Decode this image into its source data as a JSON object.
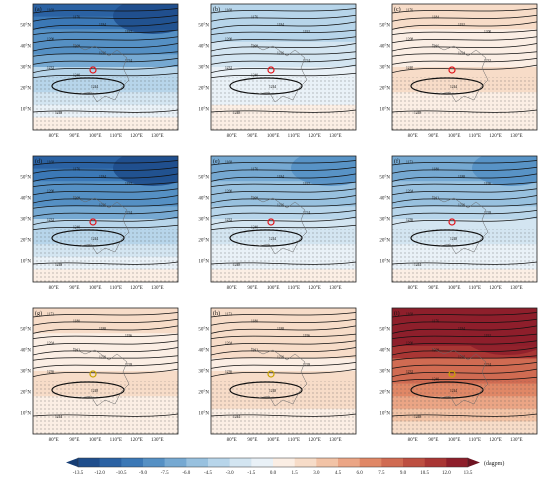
{
  "figure": {
    "panel_labels": [
      "(a)",
      "(b)",
      "(c)",
      "(d)",
      "(e)",
      "(f)",
      "(g)",
      "(h)",
      "(i)"
    ],
    "lon_ticks": [
      "80°E",
      "90°E",
      "100°E",
      "110°E",
      "120°E",
      "130°E"
    ],
    "lat_ticks": [
      "50°N",
      "40°N",
      "30°N",
      "20°N",
      "10°N"
    ],
    "colorbar": {
      "ticks": [
        "-13.5",
        "-12.0",
        "-10.5",
        "-9.0",
        "-7.5",
        "-6.0",
        "-4.5",
        "-3.0",
        "-1.5",
        "0.0",
        "1.5",
        "3.0",
        "4.5",
        "6.0",
        "7.5",
        "9.0",
        "10.5",
        "12.0",
        "13.5"
      ],
      "unit": "(dagpm)",
      "colors": [
        "#1f4e8c",
        "#2b62a3",
        "#3b78b6",
        "#5590c4",
        "#76a9d2",
        "#98c1df",
        "#b7d5ea",
        "#d3e5f1",
        "#e9f1f7",
        "#fbeee4",
        "#f7dcc8",
        "#f2c3a6",
        "#eba585",
        "#e08766",
        "#d06b52",
        "#bd4f41",
        "#a93634",
        "#8e1f2b"
      ]
    }
  },
  "chart_data": {
    "type": "contour-map",
    "panels": [
      {
        "label": "(a)",
        "field_mean_anom": -6.5,
        "contours": [
          "1168",
          "1176",
          "1184",
          "1192",
          "1200",
          "1208",
          "1216",
          "1224",
          "1232",
          "1240",
          "1248",
          "1244"
        ]
      },
      {
        "label": "(b)",
        "field_mean_anom": -2.5,
        "contours": [
          "1168",
          "1176",
          "1184",
          "1192",
          "1200",
          "1208",
          "1216",
          "1224",
          "1232",
          "1240",
          "1248",
          "1244"
        ]
      },
      {
        "label": "(c)",
        "field_mean_anom": 1.0,
        "contours": [
          "1176",
          "1184",
          "1192",
          "1200",
          "1208",
          "1216",
          "1224",
          "1232",
          "1240",
          "1248",
          "1244"
        ]
      },
      {
        "label": "(d)",
        "field_mean_anom": -6.5,
        "contours": [
          "1168",
          "1176",
          "1184",
          "1192",
          "1200",
          "1208",
          "1216",
          "1224",
          "1232",
          "1240",
          "1248",
          "1244"
        ]
      },
      {
        "label": "(e)",
        "field_mean_anom": -4.0,
        "contours": [
          "1168",
          "1176",
          "1184",
          "1192",
          "1200",
          "1208",
          "1216",
          "1224",
          "1232",
          "1240",
          "1248",
          "1244"
        ]
      },
      {
        "label": "(f)",
        "field_mean_anom": -4.0,
        "contours": [
          "1172",
          "1180",
          "1188",
          "1196",
          "1204",
          "1212",
          "1220",
          "1228",
          "1236",
          "1244",
          "1248"
        ]
      },
      {
        "label": "(g)",
        "field_mean_anom": 1.0,
        "contours": [
          "1172",
          "1180",
          "1188",
          "1196",
          "1204",
          "1212",
          "1220",
          "1228",
          "1236",
          "1244",
          "1248"
        ]
      },
      {
        "label": "(h)",
        "field_mean_anom": 1.5,
        "contours": [
          "1172",
          "1180",
          "1188",
          "1196",
          "1204",
          "1212",
          "1220",
          "1228",
          "1236",
          "1244",
          "1248"
        ]
      },
      {
        "label": "(i)",
        "field_mean_anom": 9.0,
        "contours": [
          "1168",
          "1176",
          "1184",
          "1192",
          "1200",
          "1208",
          "1216",
          "1224",
          "1232",
          "1240",
          "1248",
          "1244"
        ]
      }
    ],
    "xlim": [
      70,
      140
    ],
    "ylim": [
      0,
      60
    ],
    "legend": "bottom colorbar"
  }
}
